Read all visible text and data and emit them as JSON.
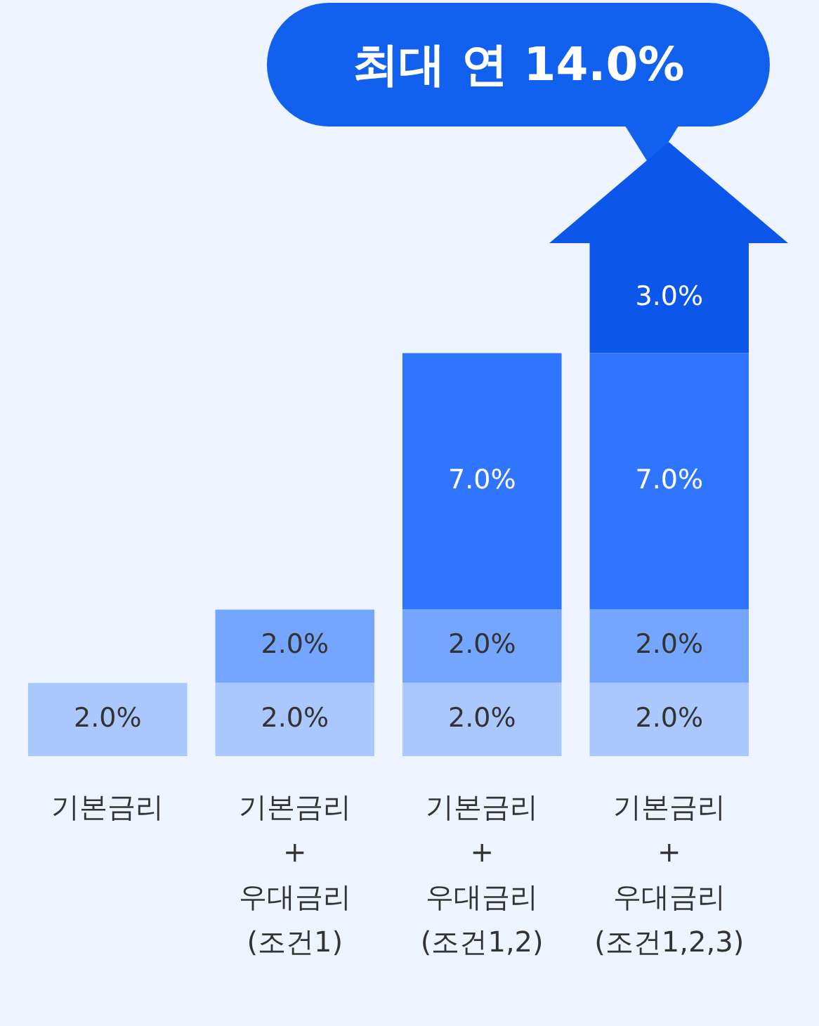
{
  "chart_data": {
    "type": "bar",
    "title": "최대 연 14.0%",
    "stacked": true,
    "categories": [
      "기본금리",
      "기본금리\n+\n우대금리\n(조건1)",
      "기본금리\n+\n우대금리\n(조건1,2)",
      "기본금리\n+\n우대금리\n(조건1,2,3)"
    ],
    "series": [
      {
        "color": "#abc8fe",
        "values": [
          2.0,
          2.0,
          2.0,
          2.0
        ],
        "value_labels": [
          "2.0%",
          "2.0%",
          "2.0%",
          "2.0%"
        ]
      },
      {
        "color": "#74a5ff",
        "values": [
          null,
          2.0,
          2.0,
          2.0
        ],
        "value_labels": [
          null,
          "2.0%",
          "2.0%",
          "2.0%"
        ]
      },
      {
        "color": "#2f75ff",
        "values": [
          null,
          null,
          7.0,
          7.0
        ],
        "value_labels": [
          null,
          null,
          "7.0%",
          "7.0%"
        ]
      },
      {
        "color": "#0c56e9",
        "values": [
          null,
          null,
          null,
          3.0
        ],
        "value_labels": [
          null,
          null,
          null,
          "3.0%"
        ]
      }
    ],
    "grid": false,
    "legend": false
  }
}
